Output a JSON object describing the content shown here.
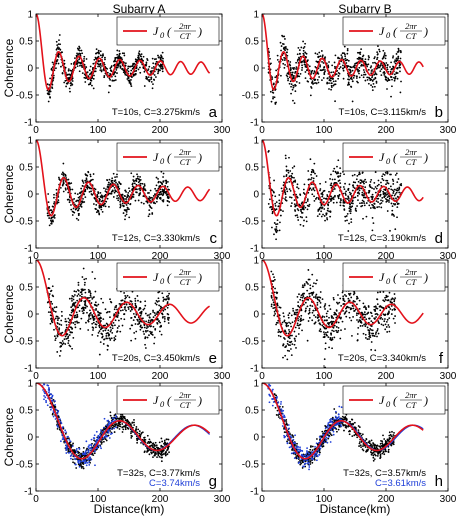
{
  "chart_data": {
    "type": "scatter",
    "column_titles": [
      "Subarry A",
      "Subarry B"
    ],
    "xlabel": "Distance(km)",
    "ylabel": "Coherence",
    "xlim": [
      0,
      300
    ],
    "ylim": [
      -1,
      1
    ],
    "xticks": [
      "0",
      "100",
      "200",
      "300"
    ],
    "yticks": [
      "-1",
      "-0.5",
      "0",
      "0.5",
      "1"
    ],
    "legend": {
      "label": "J0(2πr/CT)",
      "main": "J",
      "sub": "0",
      "num": "2πr",
      "den": "CT",
      "placement": "top-right"
    },
    "colors": {
      "model": "#e3121b",
      "observed": "#000000",
      "observed_alt": "#1f3fd8"
    },
    "panels": [
      {
        "letter": "a",
        "column": 0,
        "row": 0,
        "period_s": 10,
        "annotation": "T=10s, C=3.275km/s",
        "velocity": 3.275,
        "data_range": [
          18,
          205
        ],
        "noise": 0.1,
        "curve_max_x": 280
      },
      {
        "letter": "b",
        "column": 1,
        "row": 0,
        "period_s": 10,
        "annotation": "T=10s, C=3.115km/s",
        "velocity": 3.115,
        "data_range": [
          10,
          225
        ],
        "noise": 0.16,
        "curve_max_x": 260
      },
      {
        "letter": "c",
        "column": 0,
        "row": 1,
        "period_s": 12,
        "annotation": "T=12s, C=3.330km/s",
        "velocity": 3.33,
        "data_range": [
          18,
          215
        ],
        "noise": 0.12,
        "curve_max_x": 280
      },
      {
        "letter": "d",
        "column": 1,
        "row": 1,
        "period_s": 12,
        "annotation": "T=12s, C=3.190km/s",
        "velocity": 3.19,
        "data_range": [
          10,
          225
        ],
        "noise": 0.22,
        "curve_max_x": 260
      },
      {
        "letter": "e",
        "column": 0,
        "row": 2,
        "period_s": 20,
        "annotation": "T=20s, C=3.450km/s",
        "velocity": 3.45,
        "data_range": [
          18,
          215
        ],
        "noise": 0.2,
        "curve_max_x": 280
      },
      {
        "letter": "f",
        "column": 1,
        "row": 2,
        "period_s": 20,
        "annotation": "T=20s, C=3.340km/s",
        "velocity": 3.34,
        "data_range": [
          15,
          215
        ],
        "noise": 0.22,
        "curve_max_x": 260
      },
      {
        "letter": "g",
        "column": 0,
        "row": 3,
        "period_s": 32,
        "annotation": "T=32s, C=3.77km/s",
        "annotation2": "C=3.74km/s",
        "velocity": 3.77,
        "velocity_alt": 3.74,
        "data_range": [
          20,
          215
        ],
        "noise": 0.08,
        "blue_range": [
          10,
          130
        ],
        "curve_max_x": 280
      },
      {
        "letter": "h",
        "column": 1,
        "row": 3,
        "period_s": 32,
        "annotation": "T=32s, C=3.57km/s",
        "annotation2": "C=3.61km/s",
        "velocity": 3.57,
        "velocity_alt": 3.61,
        "data_range": [
          20,
          215
        ],
        "noise": 0.08,
        "blue_range": [
          10,
          130
        ],
        "curve_max_x": 260
      }
    ]
  }
}
